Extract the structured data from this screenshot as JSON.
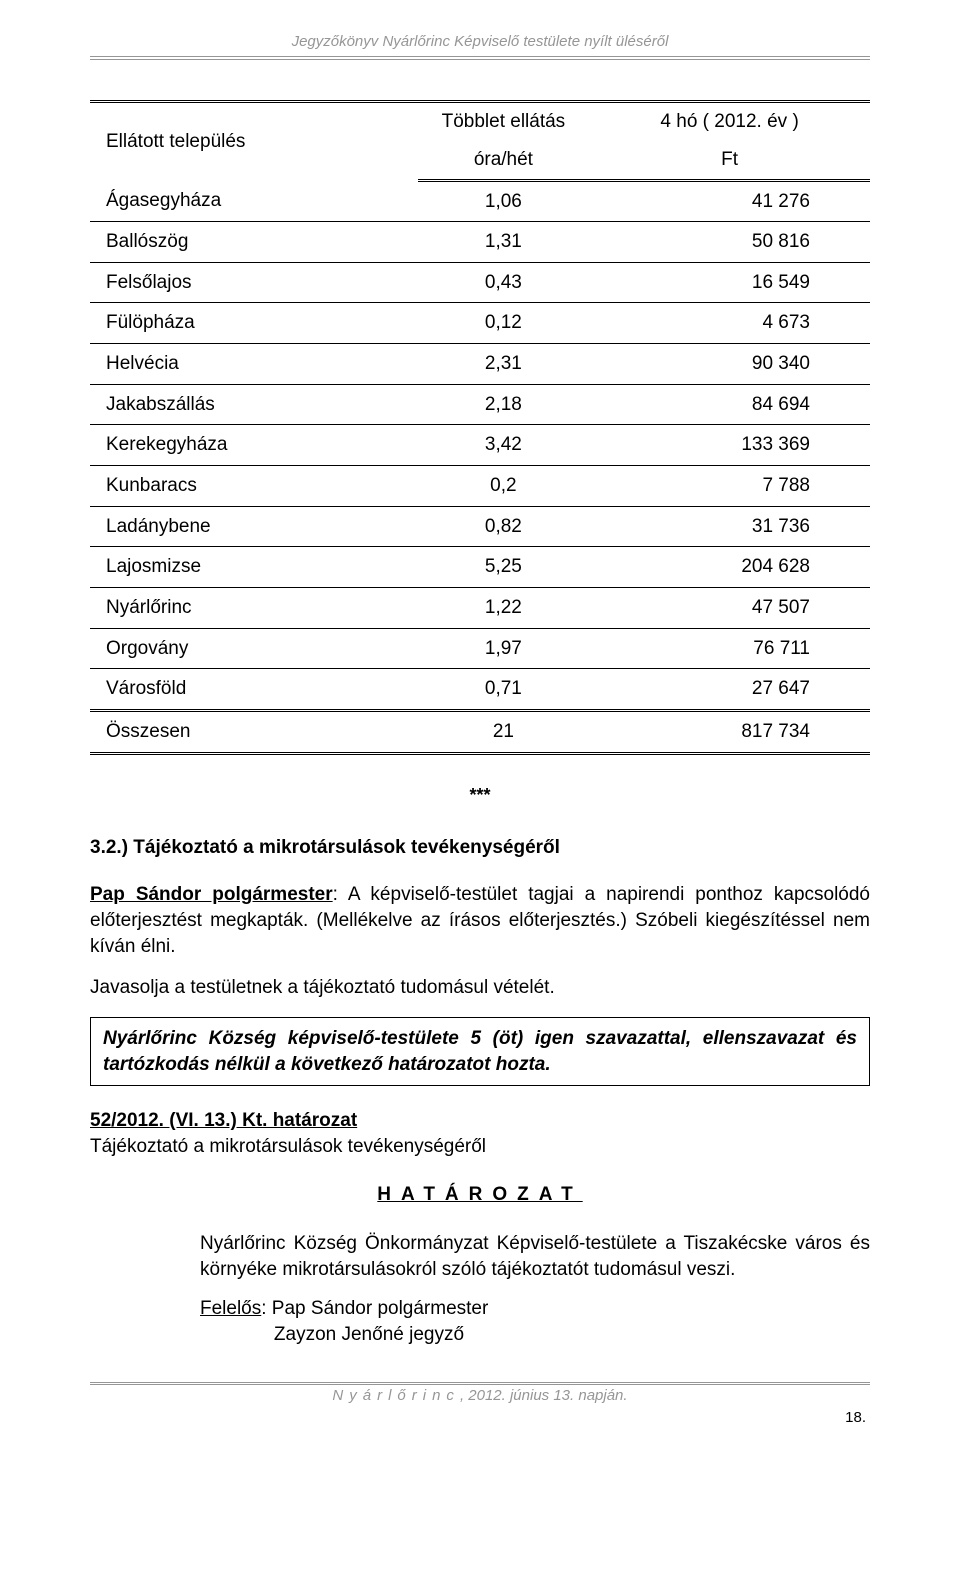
{
  "header": {
    "title": "Jegyzőkönyv Nyárlőrinc Képviselő testülete nyílt üléséről"
  },
  "table": {
    "head": {
      "col1_r1": "Ellátott település",
      "col2_r1": "Többlet ellátás",
      "col2_r2": "óra/hét",
      "col3_r1": "4 hó ( 2012. év )",
      "col3_r2": "Ft"
    },
    "rows": [
      {
        "name": "Ágasegyháza",
        "hours": "1,06",
        "amount": "41 276"
      },
      {
        "name": "Ballószög",
        "hours": "1,31",
        "amount": "50 816"
      },
      {
        "name": "Felsőlajos",
        "hours": "0,43",
        "amount": "16 549"
      },
      {
        "name": "Fülöpháza",
        "hours": "0,12",
        "amount": "4 673"
      },
      {
        "name": "Helvécia",
        "hours": "2,31",
        "amount": "90 340"
      },
      {
        "name": "Jakabszállás",
        "hours": "2,18",
        "amount": "84 694"
      },
      {
        "name": "Kerekegyháza",
        "hours": "3,42",
        "amount": "133 369"
      },
      {
        "name": "Kunbaracs",
        "hours": "0,2",
        "amount": "7 788"
      },
      {
        "name": "Ladánybene",
        "hours": "0,82",
        "amount": "31 736"
      },
      {
        "name": "Lajosmizse",
        "hours": "5,25",
        "amount": "204 628"
      },
      {
        "name": "Nyárlőrinc",
        "hours": "1,22",
        "amount": "47 507"
      },
      {
        "name": "Orgovány",
        "hours": "1,97",
        "amount": "76 711"
      },
      {
        "name": "Városföld",
        "hours": "0,71",
        "amount": "27 647"
      }
    ],
    "total": {
      "name": "Összesen",
      "hours": "21",
      "amount": "817 734"
    }
  },
  "stars": "***",
  "section": {
    "title": "3.2.) Tájékoztató a mikrotársulások tevékenységéről",
    "p1_lead": "Pap Sándor polgármester",
    "p1_rest": ": A képviselő-testület tagjai a napirendi ponthoz kapcsolódó előterjesztést megkapták. (Mellékelve az írásos előterjesztés.) Szóbeli kiegészítéssel nem kíván élni.",
    "p2": "Javasolja a testületnek a tájékoztató tudomásul vételét.",
    "box": "Nyárlőrinc Község képviselő-testülete 5 (öt) igen szavazattal, ellenszavazat és tartózkodás nélkül a következő határozatot hozta.",
    "res_num": "52/2012. (VI. 13.) Kt. határozat",
    "res_title": "Tájékoztató a mikrotársulások tevékenységéről",
    "hatarozat": "HATÁROZAT",
    "body": "Nyárlőrinc Község Önkormányzat Képviselő-testülete a Tiszakécske város és környéke mikrotársulásokról szóló tájékoztatót tudomásul veszi.",
    "responsible_label": "Felelős",
    "responsible_1": ": Pap Sándor polgármester",
    "responsible_2": "Zayzon Jenőné jegyző"
  },
  "footer": {
    "place_spaced": "Nyárlőrinc",
    "date": ", 2012. június 13. napján.",
    "page": "18."
  }
}
